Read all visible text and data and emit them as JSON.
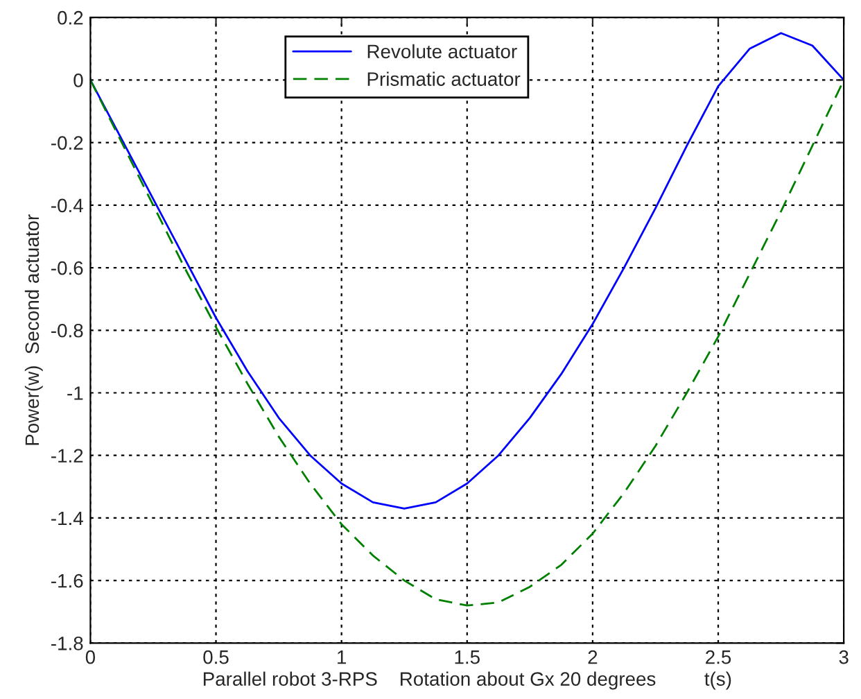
{
  "chart_data": {
    "type": "line",
    "xlabel": "Parallel robot 3-RPS    Rotation about Gx 20 degrees         t(s)",
    "ylabel": "Power(w)  Second actuator",
    "x": [
      0,
      0.125,
      0.25,
      0.375,
      0.5,
      0.625,
      0.75,
      0.875,
      1.0,
      1.125,
      1.25,
      1.375,
      1.5,
      1.625,
      1.75,
      1.875,
      2.0,
      2.125,
      2.25,
      2.375,
      2.5,
      2.625,
      2.75,
      2.875,
      3.0
    ],
    "series": [
      {
        "name": "Revolute actuator",
        "color": "#0000ff",
        "line_style": "solid",
        "values": [
          0,
          -0.19,
          -0.38,
          -0.57,
          -0.76,
          -0.93,
          -1.08,
          -1.2,
          -1.29,
          -1.35,
          -1.37,
          -1.35,
          -1.29,
          -1.2,
          -1.08,
          -0.94,
          -0.78,
          -0.6,
          -0.41,
          -0.21,
          -0.02,
          0.1,
          0.15,
          0.11,
          0
        ]
      },
      {
        "name": "Prismatic actuator",
        "color": "#008000",
        "line_style": "dashed",
        "values": [
          0,
          -0.2,
          -0.4,
          -0.6,
          -0.79,
          -0.97,
          -1.14,
          -1.29,
          -1.42,
          -1.52,
          -1.6,
          -1.66,
          -1.68,
          -1.67,
          -1.62,
          -1.55,
          -1.45,
          -1.32,
          -1.17,
          -1.0,
          -0.82,
          -0.62,
          -0.42,
          -0.21,
          0
        ]
      }
    ],
    "xlim": [
      0,
      3
    ],
    "xticks": [
      0,
      0.5,
      1,
      1.5,
      2,
      2.5,
      3
    ],
    "ylim": [
      -1.8,
      0.2
    ],
    "yticks": [
      -1.8,
      -1.6,
      -1.4,
      -1.2,
      -1,
      -0.8,
      -0.6,
      -0.4,
      -0.2,
      0,
      0.2
    ],
    "grid": true,
    "legend": "top",
    "marker": "none"
  }
}
